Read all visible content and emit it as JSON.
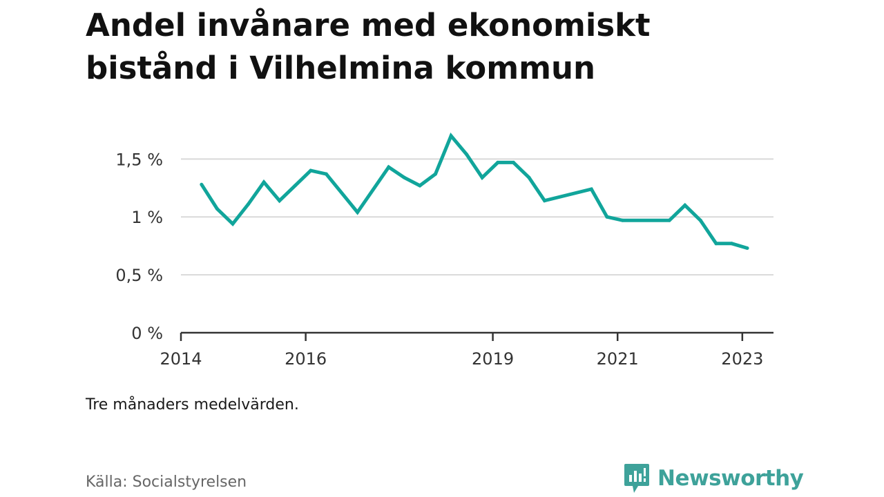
{
  "title_lines": [
    "Andel invånare med ekonomiskt",
    "bistånd i Vilhelmina kommun"
  ],
  "note": "Tre månaders medelvärden.",
  "source": "Källa: Socialstyrelsen",
  "brand": {
    "name": "Newsworthy",
    "icon": "newsworthy-logo-icon",
    "color": "#3ea29a"
  },
  "chart_data": {
    "type": "line",
    "title": "Andel invånare med ekonomiskt bistånd i Vilhelmina kommun",
    "xlabel": "",
    "ylabel": "",
    "x_ticks": [
      {
        "label": "2014",
        "x": 2014.0
      },
      {
        "label": "2016",
        "x": 2016.0
      },
      {
        "label": "2019",
        "x": 2019.0
      },
      {
        "label": "2021",
        "x": 2021.0
      },
      {
        "label": "2023",
        "x": 2023.0
      }
    ],
    "y_ticks": [
      {
        "label": "0 %",
        "y": 0
      },
      {
        "label": "0,5 %",
        "y": 0.5
      },
      {
        "label": "1 %",
        "y": 1.0
      },
      {
        "label": "1,5 %",
        "y": 1.5
      }
    ],
    "xlim": [
      2014.0,
      2023.5
    ],
    "ylim": [
      0,
      1.8
    ],
    "grid": true,
    "color": "#11a59b",
    "series": [
      {
        "points": [
          {
            "x": 2014.33,
            "y": 1.28
          },
          {
            "x": 2014.58,
            "y": 1.07
          },
          {
            "x": 2014.83,
            "y": 0.94
          },
          {
            "x": 2015.08,
            "y": 1.11
          },
          {
            "x": 2015.33,
            "y": 1.3
          },
          {
            "x": 2015.58,
            "y": 1.14
          },
          {
            "x": 2015.83,
            "y": 1.27
          },
          {
            "x": 2016.08,
            "y": 1.4
          },
          {
            "x": 2016.33,
            "y": 1.37
          },
          {
            "x": 2016.83,
            "y": 1.04
          },
          {
            "x": 2017.33,
            "y": 1.43
          },
          {
            "x": 2017.58,
            "y": 1.34
          },
          {
            "x": 2017.83,
            "y": 1.27
          },
          {
            "x": 2018.08,
            "y": 1.37
          },
          {
            "x": 2018.33,
            "y": 1.7
          },
          {
            "x": 2018.58,
            "y": 1.54
          },
          {
            "x": 2018.83,
            "y": 1.34
          },
          {
            "x": 2019.08,
            "y": 1.47
          },
          {
            "x": 2019.33,
            "y": 1.47
          },
          {
            "x": 2019.58,
            "y": 1.34
          },
          {
            "x": 2019.83,
            "y": 1.14
          },
          {
            "x": 2020.58,
            "y": 1.24
          },
          {
            "x": 2020.83,
            "y": 1.0
          },
          {
            "x": 2021.08,
            "y": 0.97
          },
          {
            "x": 2021.83,
            "y": 0.97
          },
          {
            "x": 2022.08,
            "y": 1.1
          },
          {
            "x": 2022.33,
            "y": 0.97
          },
          {
            "x": 2022.58,
            "y": 0.77
          },
          {
            "x": 2022.83,
            "y": 0.77
          },
          {
            "x": 2023.08,
            "y": 0.73
          }
        ]
      }
    ]
  }
}
